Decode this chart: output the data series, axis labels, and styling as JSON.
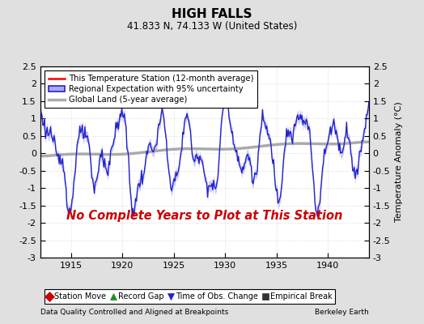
{
  "title": "HIGH FALLS",
  "subtitle": "41.833 N, 74.133 W (United States)",
  "ylabel": "Temperature Anomaly (°C)",
  "xlabel_left": "Data Quality Controlled and Aligned at Breakpoints",
  "xlabel_right": "Berkeley Earth",
  "no_data_text": "No Complete Years to Plot at This Station",
  "xlim": [
    1912,
    1944
  ],
  "ylim": [
    -3.0,
    2.5
  ],
  "yticks": [
    -3.0,
    -2.5,
    -2,
    -1.5,
    -1,
    -0.5,
    0,
    0.5,
    1,
    1.5,
    2,
    2.5
  ],
  "ytick_labels": [
    "-3",
    "-2.5",
    "-2",
    "-1.5",
    "-1",
    "-0.5",
    "0",
    "0.5",
    "1",
    "1.5",
    "2",
    "2.5"
  ],
  "xticks": [
    1915,
    1920,
    1925,
    1930,
    1935,
    1940
  ],
  "fig_bg_color": "#e0e0e0",
  "plot_bg_color": "#ffffff",
  "regional_color": "#2222cc",
  "regional_fill_color": "#aaaaee",
  "station_color": "#ff0000",
  "global_color": "#aaaaaa",
  "no_data_color": "#cc0000",
  "legend_items": [
    {
      "label": "This Temperature Station (12-month average)",
      "color": "#ff0000",
      "lw": 1.5
    },
    {
      "label": "Regional Expectation with 95% uncertainty",
      "color": "#2222cc",
      "fill": "#aaaaee"
    },
    {
      "label": "Global Land (5-year average)",
      "color": "#aaaaaa",
      "lw": 2.0
    }
  ],
  "icon_items": [
    {
      "label": "Station Move",
      "color": "#cc0000",
      "marker": "D"
    },
    {
      "label": "Record Gap",
      "color": "#228B22",
      "marker": "^"
    },
    {
      "label": "Time of Obs. Change",
      "color": "#2222cc",
      "marker": "v"
    },
    {
      "label": "Empirical Break",
      "color": "#333333",
      "marker": "s"
    }
  ]
}
